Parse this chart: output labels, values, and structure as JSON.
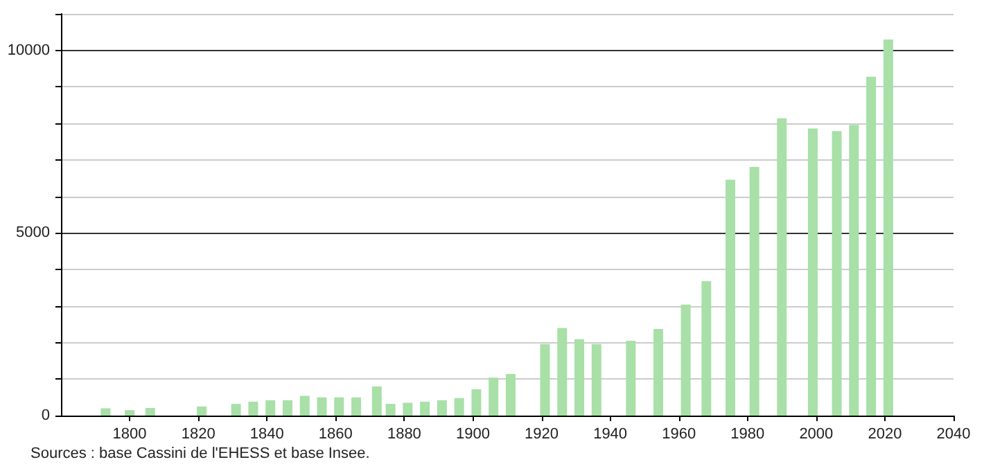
{
  "chart_data": {
    "type": "bar",
    "x": [
      1793,
      1800,
      1806,
      1821,
      1831,
      1836,
      1841,
      1846,
      1851,
      1856,
      1861,
      1866,
      1872,
      1876,
      1881,
      1886,
      1891,
      1896,
      1901,
      1906,
      1911,
      1921,
      1926,
      1931,
      1936,
      1946,
      1954,
      1962,
      1968,
      1975,
      1982,
      1990,
      1999,
      2006,
      2011,
      2016,
      2021
    ],
    "values": [
      200,
      150,
      210,
      250,
      320,
      380,
      420,
      420,
      540,
      500,
      500,
      500,
      800,
      320,
      350,
      380,
      420,
      480,
      720,
      1040,
      1140,
      1960,
      2400,
      2090,
      1960,
      2050,
      2370,
      3040,
      3680,
      6460,
      6810,
      8140,
      7860,
      7790,
      7960,
      9280,
      10300
    ],
    "color": "#a8e0a8",
    "xlim": [
      1780,
      2040
    ],
    "xticks": [
      1800,
      1820,
      1840,
      1860,
      1880,
      1900,
      1920,
      1940,
      1960,
      1980,
      2000,
      2020,
      2040
    ],
    "ylim": [
      0,
      11000
    ],
    "yticks": [
      0,
      {
        "value": 1000,
        "label": null
      },
      {
        "value": 2000,
        "label": null
      },
      {
        "value": 3000,
        "label": null
      },
      {
        "value": 4000,
        "label": null
      },
      5000,
      {
        "value": 6000,
        "label": null
      },
      {
        "value": 7000,
        "label": null
      },
      {
        "value": 8000,
        "label": null
      },
      {
        "value": 9000,
        "label": null
      },
      10000,
      {
        "value": 11000,
        "label": null
      }
    ],
    "grid": "y",
    "annotations": [
      "Sources : base Cassini de l'EHESS et base Insee."
    ]
  }
}
